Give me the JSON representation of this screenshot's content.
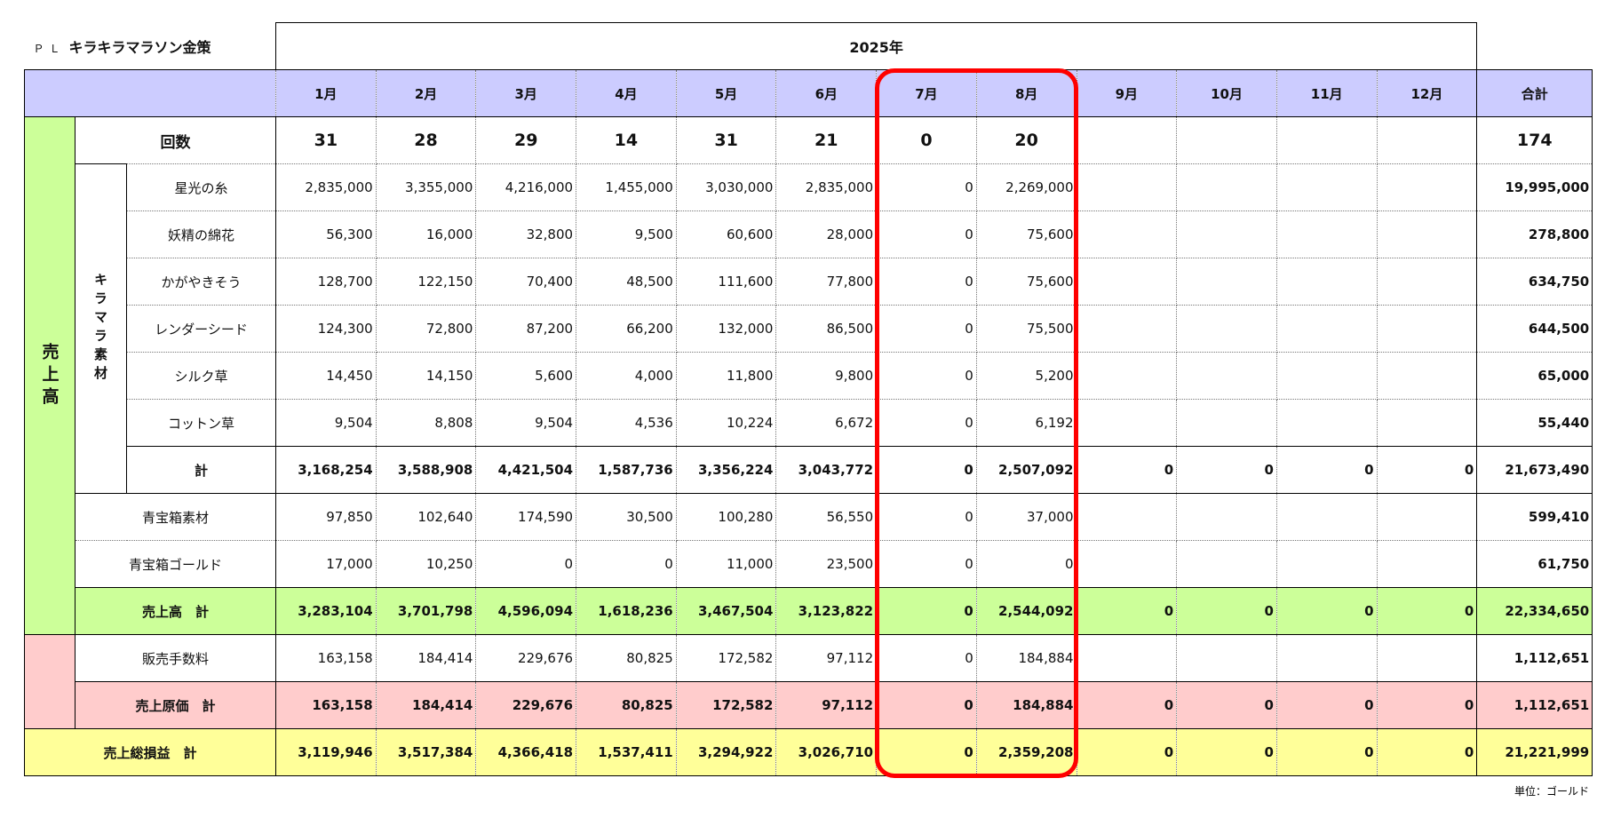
{
  "header": {
    "pl": "ＰＬ",
    "title": "キラキラマラソン金策",
    "year": "2025年"
  },
  "columns": {
    "months": [
      "1月",
      "2月",
      "3月",
      "4月",
      "5月",
      "6月",
      "7月",
      "8月",
      "9月",
      "10月",
      "11月",
      "12月"
    ],
    "total": "合計"
  },
  "groups": {
    "sales": "売上高",
    "kirama": "キラマラ素材"
  },
  "rows": [
    {
      "label": "回数",
      "values": [
        "31",
        "28",
        "29",
        "14",
        "31",
        "21",
        "0",
        "20"
      ],
      "total": "174"
    },
    {
      "label": "星光の糸",
      "values": [
        "2,835,000",
        "3,355,000",
        "4,216,000",
        "1,455,000",
        "3,030,000",
        "2,835,000",
        "0",
        "2,269,000"
      ],
      "total": "19,995,000"
    },
    {
      "label": "妖精の綿花",
      "values": [
        "56,300",
        "16,000",
        "32,800",
        "9,500",
        "60,600",
        "28,000",
        "0",
        "75,600"
      ],
      "total": "278,800"
    },
    {
      "label": "かがやきそう",
      "values": [
        "128,700",
        "122,150",
        "70,400",
        "48,500",
        "111,600",
        "77,800",
        "0",
        "75,600"
      ],
      "total": "634,750"
    },
    {
      "label": "レンダーシード",
      "values": [
        "124,300",
        "72,800",
        "87,200",
        "66,200",
        "132,000",
        "86,500",
        "0",
        "75,500"
      ],
      "total": "644,500"
    },
    {
      "label": "シルク草",
      "values": [
        "14,450",
        "14,150",
        "5,600",
        "4,000",
        "11,800",
        "9,800",
        "0",
        "5,200"
      ],
      "total": "65,000"
    },
    {
      "label": "コットン草",
      "values": [
        "9,504",
        "8,808",
        "9,504",
        "4,536",
        "10,224",
        "6,672",
        "0",
        "6,192"
      ],
      "total": "55,440"
    },
    {
      "label": "計",
      "values": [
        "3,168,254",
        "3,588,908",
        "4,421,504",
        "1,587,736",
        "3,356,224",
        "3,043,772",
        "0",
        "2,507,092",
        "0",
        "0",
        "0",
        "0"
      ],
      "total": "21,673,490"
    },
    {
      "label": "青宝箱素材",
      "values": [
        "97,850",
        "102,640",
        "174,590",
        "30,500",
        "100,280",
        "56,550",
        "0",
        "37,000"
      ],
      "total": "599,410"
    },
    {
      "label": "青宝箱ゴールド",
      "values": [
        "17,000",
        "10,250",
        "0",
        "0",
        "11,000",
        "23,500",
        "0",
        "0"
      ],
      "total": "61,750"
    },
    {
      "label": "売上高　計",
      "values": [
        "3,283,104",
        "3,701,798",
        "4,596,094",
        "1,618,236",
        "3,467,504",
        "3,123,822",
        "0",
        "2,544,092",
        "0",
        "0",
        "0",
        "0"
      ],
      "total": "22,334,650"
    },
    {
      "label": "販売手数料",
      "values": [
        "163,158",
        "184,414",
        "229,676",
        "80,825",
        "172,582",
        "97,112",
        "0",
        "184,884"
      ],
      "total": "1,112,651"
    },
    {
      "label": "売上原価　計",
      "values": [
        "163,158",
        "184,414",
        "229,676",
        "80,825",
        "172,582",
        "97,112",
        "0",
        "184,884",
        "0",
        "0",
        "0",
        "0"
      ],
      "total": "1,112,651"
    },
    {
      "label": "売上総損益　計",
      "values": [
        "3,119,946",
        "3,517,384",
        "4,366,418",
        "1,537,411",
        "3,294,922",
        "3,026,710",
        "0",
        "2,359,208",
        "0",
        "0",
        "0",
        "0"
      ],
      "total": "21,221,999"
    }
  ],
  "unit_note": "単位：ゴールド"
}
